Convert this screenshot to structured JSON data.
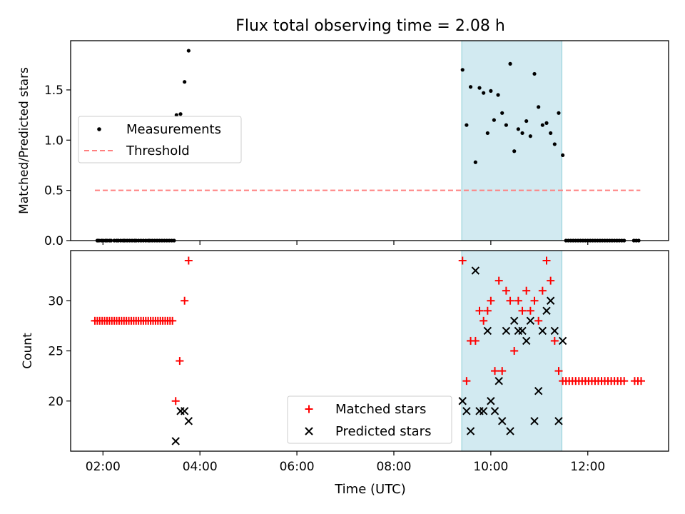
{
  "title": "Flux total observing time = 2.08 h",
  "xlabel": "Time (UTC)",
  "x_tick_labels": [
    "02:00",
    "04:00",
    "06:00",
    "08:00",
    "10:00",
    "12:00"
  ],
  "colors": {
    "shade": "#add8e6",
    "matched": "#ff0000",
    "predicted": "#000000",
    "measure": "#000000",
    "threshold": "#ff7f7f"
  },
  "chart_data": [
    {
      "type": "scatter",
      "ylabel": "Matched/Predicted stars",
      "xlim": [
        "01:20",
        "13:40"
      ],
      "ylim": [
        0,
        1.99
      ],
      "y_ticks": [
        0.0,
        0.5,
        1.0,
        1.5
      ],
      "y_tick_labels": [
        "0.0",
        "0.5",
        "1.0",
        "1.5"
      ],
      "shaded_region": [
        "09:24",
        "11:28"
      ],
      "legend_position": "center-left",
      "legend": [
        "Measurements",
        "Threshold"
      ],
      "threshold": {
        "value": 0.5,
        "x_range": [
          "01:50",
          "13:05"
        ]
      },
      "measurements": [
        [
          "01:53",
          0
        ],
        [
          "01:55",
          0
        ],
        [
          "01:58",
          0
        ],
        [
          "02:00",
          0
        ],
        [
          "02:03",
          0
        ],
        [
          "02:05",
          0
        ],
        [
          "02:08",
          0
        ],
        [
          "02:10",
          0
        ],
        [
          "02:14",
          0
        ],
        [
          "02:17",
          0
        ],
        [
          "02:19",
          0
        ],
        [
          "02:22",
          0
        ],
        [
          "02:25",
          0
        ],
        [
          "02:27",
          0
        ],
        [
          "02:30",
          0
        ],
        [
          "02:33",
          0
        ],
        [
          "02:36",
          0
        ],
        [
          "02:39",
          0
        ],
        [
          "02:41",
          0
        ],
        [
          "02:44",
          0
        ],
        [
          "02:47",
          0
        ],
        [
          "02:50",
          0
        ],
        [
          "02:53",
          0
        ],
        [
          "02:56",
          0
        ],
        [
          "02:58",
          0
        ],
        [
          "03:01",
          0
        ],
        [
          "03:04",
          0
        ],
        [
          "03:07",
          0
        ],
        [
          "03:10",
          0
        ],
        [
          "03:13",
          0
        ],
        [
          "03:16",
          0
        ],
        [
          "03:19",
          0
        ],
        [
          "03:22",
          0
        ],
        [
          "03:25",
          0
        ],
        [
          "03:28",
          0
        ],
        [
          "03:31",
          1.25
        ],
        [
          "03:36",
          1.26
        ],
        [
          "03:41",
          1.58
        ],
        [
          "03:46",
          1.89
        ],
        [
          "09:25",
          1.7
        ],
        [
          "09:30",
          1.15
        ],
        [
          "09:35",
          1.53
        ],
        [
          "09:41",
          0.78
        ],
        [
          "09:46",
          1.52
        ],
        [
          "09:51",
          1.47
        ],
        [
          "09:56",
          1.07
        ],
        [
          "10:00",
          1.49
        ],
        [
          "10:04",
          1.2
        ],
        [
          "10:09",
          1.45
        ],
        [
          "10:14",
          1.27
        ],
        [
          "10:19",
          1.15
        ],
        [
          "10:24",
          1.76
        ],
        [
          "10:29",
          0.89
        ],
        [
          "10:34",
          1.11
        ],
        [
          "10:39",
          1.07
        ],
        [
          "10:44",
          1.19
        ],
        [
          "10:49",
          1.04
        ],
        [
          "10:54",
          1.66
        ],
        [
          "10:59",
          1.33
        ],
        [
          "11:04",
          1.15
        ],
        [
          "11:09",
          1.17
        ],
        [
          "11:14",
          1.07
        ],
        [
          "11:19",
          0.96
        ],
        [
          "11:24",
          1.27
        ],
        [
          "11:29",
          0.85
        ],
        [
          "11:33",
          0
        ],
        [
          "11:36",
          0
        ],
        [
          "11:39",
          0
        ],
        [
          "11:42",
          0
        ],
        [
          "11:45",
          0
        ],
        [
          "11:48",
          0
        ],
        [
          "11:51",
          0
        ],
        [
          "11:54",
          0
        ],
        [
          "11:57",
          0
        ],
        [
          "12:00",
          0
        ],
        [
          "12:03",
          0
        ],
        [
          "12:06",
          0
        ],
        [
          "12:09",
          0
        ],
        [
          "12:12",
          0
        ],
        [
          "12:15",
          0
        ],
        [
          "12:18",
          0
        ],
        [
          "12:21",
          0
        ],
        [
          "12:24",
          0
        ],
        [
          "12:27",
          0
        ],
        [
          "12:30",
          0
        ],
        [
          "12:33",
          0
        ],
        [
          "12:36",
          0
        ],
        [
          "12:39",
          0
        ],
        [
          "12:42",
          0
        ],
        [
          "12:45",
          0
        ],
        [
          "12:57",
          0
        ],
        [
          "13:00",
          0
        ],
        [
          "13:03",
          0
        ]
      ]
    },
    {
      "type": "scatter",
      "ylabel": "Count",
      "xlim": [
        "01:20",
        "13:40"
      ],
      "ylim": [
        15,
        35
      ],
      "y_ticks": [
        20,
        25,
        30
      ],
      "y_tick_labels": [
        "20",
        "25",
        "30"
      ],
      "shaded_region": [
        "09:24",
        "11:28"
      ],
      "legend_position": "lower-center",
      "legend": [
        "Matched stars",
        "Predicted stars"
      ],
      "matched": [
        [
          "01:50",
          28
        ],
        [
          "01:53",
          28
        ],
        [
          "01:56",
          28
        ],
        [
          "01:59",
          28
        ],
        [
          "02:02",
          28
        ],
        [
          "02:05",
          28
        ],
        [
          "02:08",
          28
        ],
        [
          "02:11",
          28
        ],
        [
          "02:14",
          28
        ],
        [
          "02:17",
          28
        ],
        [
          "02:20",
          28
        ],
        [
          "02:23",
          28
        ],
        [
          "02:26",
          28
        ],
        [
          "02:29",
          28
        ],
        [
          "02:32",
          28
        ],
        [
          "02:35",
          28
        ],
        [
          "02:38",
          28
        ],
        [
          "02:41",
          28
        ],
        [
          "02:44",
          28
        ],
        [
          "02:47",
          28
        ],
        [
          "02:50",
          28
        ],
        [
          "02:53",
          28
        ],
        [
          "02:56",
          28
        ],
        [
          "02:59",
          28
        ],
        [
          "03:02",
          28
        ],
        [
          "03:05",
          28
        ],
        [
          "03:08",
          28
        ],
        [
          "03:11",
          28
        ],
        [
          "03:14",
          28
        ],
        [
          "03:17",
          28
        ],
        [
          "03:20",
          28
        ],
        [
          "03:23",
          28
        ],
        [
          "03:26",
          28
        ],
        [
          "03:30",
          20
        ],
        [
          "03:35",
          24
        ],
        [
          "03:41",
          30
        ],
        [
          "03:46",
          34
        ],
        [
          "09:25",
          34
        ],
        [
          "09:30",
          22
        ],
        [
          "09:35",
          26
        ],
        [
          "09:41",
          26
        ],
        [
          "09:46",
          29
        ],
        [
          "09:51",
          28
        ],
        [
          "09:56",
          29
        ],
        [
          "10:00",
          30
        ],
        [
          "10:05",
          23
        ],
        [
          "10:10",
          32
        ],
        [
          "10:14",
          23
        ],
        [
          "10:19",
          31
        ],
        [
          "10:24",
          30
        ],
        [
          "10:29",
          25
        ],
        [
          "10:34",
          30
        ],
        [
          "10:39",
          29
        ],
        [
          "10:44",
          31
        ],
        [
          "10:49",
          29
        ],
        [
          "10:54",
          30
        ],
        [
          "10:59",
          28
        ],
        [
          "11:04",
          31
        ],
        [
          "11:09",
          34
        ],
        [
          "11:14",
          32
        ],
        [
          "11:19",
          26
        ],
        [
          "11:24",
          23
        ],
        [
          "11:29",
          22
        ],
        [
          "11:33",
          22
        ],
        [
          "11:37",
          22
        ],
        [
          "11:41",
          22
        ],
        [
          "11:45",
          22
        ],
        [
          "11:49",
          22
        ],
        [
          "11:53",
          22
        ],
        [
          "11:57",
          22
        ],
        [
          "12:01",
          22
        ],
        [
          "12:05",
          22
        ],
        [
          "12:09",
          22
        ],
        [
          "12:13",
          22
        ],
        [
          "12:17",
          22
        ],
        [
          "12:21",
          22
        ],
        [
          "12:25",
          22
        ],
        [
          "12:29",
          22
        ],
        [
          "12:33",
          22
        ],
        [
          "12:37",
          22
        ],
        [
          "12:41",
          22
        ],
        [
          "12:45",
          22
        ],
        [
          "12:58",
          22
        ],
        [
          "13:02",
          22
        ],
        [
          "13:06",
          22
        ]
      ],
      "predicted": [
        [
          "03:30",
          16
        ],
        [
          "03:36",
          19
        ],
        [
          "03:41",
          19
        ],
        [
          "03:46",
          18
        ],
        [
          "09:25",
          20
        ],
        [
          "09:30",
          19
        ],
        [
          "09:35",
          17
        ],
        [
          "09:41",
          33
        ],
        [
          "09:46",
          19
        ],
        [
          "09:51",
          19
        ],
        [
          "09:56",
          27
        ],
        [
          "10:00",
          20
        ],
        [
          "10:05",
          19
        ],
        [
          "10:10",
          22
        ],
        [
          "10:14",
          18
        ],
        [
          "10:19",
          27
        ],
        [
          "10:24",
          17
        ],
        [
          "10:29",
          28
        ],
        [
          "10:34",
          27
        ],
        [
          "10:39",
          27
        ],
        [
          "10:44",
          26
        ],
        [
          "10:49",
          28
        ],
        [
          "10:54",
          18
        ],
        [
          "10:59",
          21
        ],
        [
          "11:04",
          27
        ],
        [
          "11:09",
          29
        ],
        [
          "11:14",
          30
        ],
        [
          "11:19",
          27
        ],
        [
          "11:24",
          18
        ],
        [
          "11:29",
          26
        ]
      ]
    }
  ]
}
